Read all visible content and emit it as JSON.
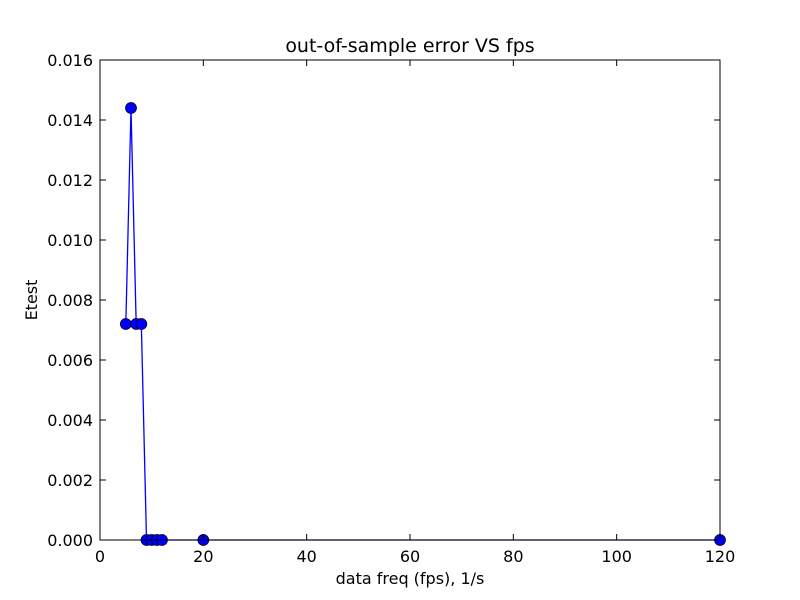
{
  "chart_data": {
    "type": "line",
    "title": "out-of-sample error VS fps",
    "xlabel": "data freq (fps), 1/s",
    "ylabel": "Etest",
    "xlim": [
      0,
      120
    ],
    "ylim": [
      0,
      0.016
    ],
    "x_ticks": [
      0,
      20,
      40,
      60,
      80,
      100,
      120
    ],
    "x_tick_labels": [
      "0",
      "20",
      "40",
      "60",
      "80",
      "100",
      "120"
    ],
    "y_ticks": [
      0,
      0.002,
      0.004,
      0.006,
      0.008,
      0.01,
      0.012,
      0.014,
      0.016
    ],
    "y_tick_labels": [
      "0.000",
      "0.002",
      "0.004",
      "0.006",
      "0.008",
      "0.010",
      "0.012",
      "0.014",
      "0.016"
    ],
    "grid": false,
    "legend": "none",
    "series": [
      {
        "x": [
          5,
          6,
          7,
          8,
          9,
          10,
          11,
          12,
          20,
          120
        ],
        "y": [
          0.0072,
          0.0144,
          0.0072,
          0.0072,
          0,
          0,
          0,
          0,
          0,
          0
        ],
        "color": "#0000ff",
        "marker": "circle"
      }
    ]
  }
}
